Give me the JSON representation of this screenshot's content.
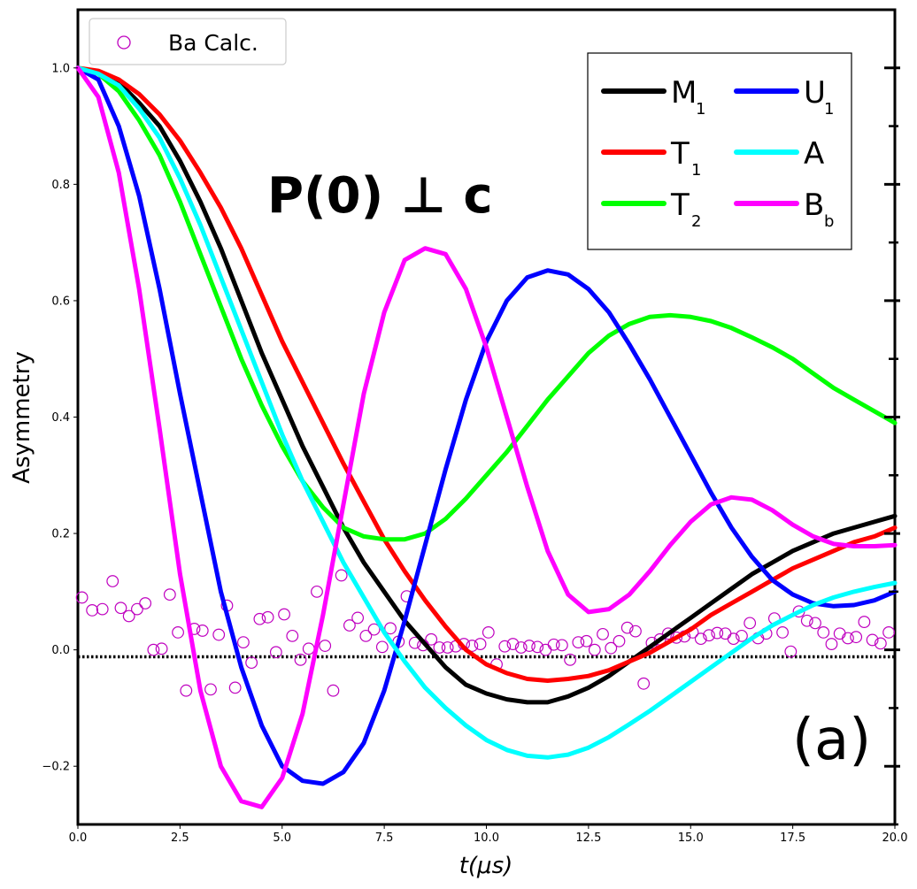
{
  "chart_data": {
    "type": "line",
    "xlabel": "t(μs)",
    "ylabel": "Asymmetry",
    "xlim": [
      0,
      20
    ],
    "ylim": [
      -0.3,
      1.1
    ],
    "xticks": [
      0.0,
      2.5,
      5.0,
      7.5,
      10.0,
      12.5,
      15.0,
      17.5,
      20.0
    ],
    "xtick_labels": [
      "0.0",
      "2.5",
      "5.0",
      "7.5",
      "10.0",
      "12.5",
      "15.0",
      "17.5",
      "20.0"
    ],
    "yticks": [
      -0.2,
      0.0,
      0.2,
      0.4,
      0.6,
      0.8,
      1.0
    ],
    "ytick_labels": [
      "−0.2",
      "0.0",
      "0.2",
      "0.4",
      "0.6",
      "0.8",
      "1.0"
    ],
    "grid": false,
    "annotations": {
      "polarization": "P(0) ⊥ c",
      "panel": "(a)"
    },
    "legend": {
      "placement": "top-left",
      "entry": "Ba Calc."
    },
    "inset_legend": {
      "placement": "top-right",
      "entries": [
        {
          "main": "M",
          "sub": "1",
          "color": "#000000"
        },
        {
          "main": "U",
          "sub": "1",
          "color": "#0000ff"
        },
        {
          "main": "T",
          "sub": "1",
          "color": "#ff0000"
        },
        {
          "main": "A",
          "sub": "",
          "color": "#00ffff"
        },
        {
          "main": "T",
          "sub": "2",
          "color": "#00ff00"
        },
        {
          "main": "B",
          "sub": "b",
          "color": "#ff00ff"
        }
      ]
    },
    "baseline": {
      "y": -0.012,
      "style": "dotted",
      "color": "#000000"
    },
    "series": [
      {
        "name": "M1",
        "color": "#000000",
        "x": [
          0,
          0.5,
          1,
          1.5,
          2,
          2.5,
          3,
          3.5,
          4,
          4.5,
          5,
          5.5,
          6,
          6.5,
          7,
          7.5,
          8,
          8.5,
          9,
          9.5,
          10,
          10.5,
          11,
          11.5,
          12,
          12.5,
          13,
          13.5,
          14,
          14.5,
          15,
          15.5,
          16,
          16.5,
          17,
          17.5,
          18,
          18.5,
          19,
          19.5,
          20
        ],
        "y": [
          1.0,
          0.99,
          0.975,
          0.94,
          0.9,
          0.84,
          0.77,
          0.69,
          0.6,
          0.51,
          0.43,
          0.35,
          0.28,
          0.21,
          0.15,
          0.1,
          0.05,
          0.01,
          -0.03,
          -0.06,
          -0.075,
          -0.085,
          -0.09,
          -0.09,
          -0.08,
          -0.065,
          -0.045,
          -0.02,
          0.005,
          0.03,
          0.055,
          0.08,
          0.105,
          0.13,
          0.15,
          0.17,
          0.185,
          0.2,
          0.21,
          0.22,
          0.23
        ]
      },
      {
        "name": "T1",
        "color": "#ff0000",
        "x": [
          0,
          0.5,
          1,
          1.5,
          2,
          2.5,
          3,
          3.5,
          4,
          4.5,
          5,
          5.5,
          6,
          6.5,
          7,
          7.5,
          8,
          8.5,
          9,
          9.5,
          10,
          10.5,
          11,
          11.5,
          12,
          12.5,
          13,
          13.5,
          14,
          14.5,
          15,
          15.5,
          16,
          16.5,
          17,
          17.5,
          18,
          18.5,
          19,
          19.5,
          20
        ],
        "y": [
          1.0,
          0.995,
          0.98,
          0.955,
          0.92,
          0.875,
          0.82,
          0.76,
          0.69,
          0.61,
          0.53,
          0.46,
          0.39,
          0.32,
          0.255,
          0.19,
          0.135,
          0.085,
          0.04,
          0.0,
          -0.025,
          -0.04,
          -0.05,
          -0.053,
          -0.05,
          -0.045,
          -0.035,
          -0.02,
          -0.005,
          0.015,
          0.035,
          0.06,
          0.08,
          0.1,
          0.12,
          0.14,
          0.155,
          0.17,
          0.185,
          0.195,
          0.21
        ]
      },
      {
        "name": "T2",
        "color": "#00ff00",
        "x": [
          0,
          0.5,
          1,
          1.5,
          2,
          2.5,
          3,
          3.5,
          4,
          4.5,
          5,
          5.5,
          6,
          6.5,
          7,
          7.5,
          8,
          8.5,
          9,
          9.5,
          10,
          10.5,
          11,
          11.5,
          12,
          12.5,
          13,
          13.5,
          14,
          14.5,
          15,
          15.5,
          16,
          16.5,
          17,
          17.5,
          18,
          18.5,
          19,
          19.5,
          20
        ],
        "y": [
          1.0,
          0.99,
          0.96,
          0.91,
          0.85,
          0.77,
          0.68,
          0.59,
          0.5,
          0.42,
          0.35,
          0.29,
          0.245,
          0.21,
          0.195,
          0.19,
          0.19,
          0.2,
          0.225,
          0.26,
          0.3,
          0.34,
          0.385,
          0.43,
          0.47,
          0.51,
          0.54,
          0.56,
          0.572,
          0.575,
          0.572,
          0.565,
          0.553,
          0.537,
          0.52,
          0.5,
          0.475,
          0.45,
          0.43,
          0.41,
          0.39
        ]
      },
      {
        "name": "U1",
        "color": "#0000ff",
        "x": [
          0,
          0.5,
          1,
          1.5,
          2,
          2.5,
          3,
          3.5,
          4,
          4.5,
          5,
          5.5,
          6,
          6.5,
          7,
          7.5,
          8,
          8.5,
          9,
          9.5,
          10,
          10.5,
          11,
          11.5,
          12,
          12.5,
          13,
          13.5,
          14,
          14.5,
          15,
          15.5,
          16,
          16.5,
          17,
          17.5,
          18,
          18.5,
          19,
          19.5,
          20
        ],
        "y": [
          1.0,
          0.98,
          0.9,
          0.78,
          0.62,
          0.44,
          0.27,
          0.1,
          -0.03,
          -0.13,
          -0.2,
          -0.225,
          -0.23,
          -0.21,
          -0.16,
          -0.07,
          0.05,
          0.18,
          0.31,
          0.43,
          0.53,
          0.6,
          0.64,
          0.652,
          0.645,
          0.62,
          0.58,
          0.525,
          0.465,
          0.4,
          0.335,
          0.27,
          0.21,
          0.16,
          0.12,
          0.095,
          0.08,
          0.075,
          0.077,
          0.085,
          0.1
        ]
      },
      {
        "name": "A",
        "color": "#00ffff",
        "x": [
          0,
          0.5,
          1,
          1.5,
          2,
          2.5,
          3,
          3.5,
          4,
          4.5,
          5,
          5.5,
          6,
          6.5,
          7,
          7.5,
          8,
          8.5,
          9,
          9.5,
          10,
          10.5,
          11,
          11.5,
          12,
          12.5,
          13,
          13.5,
          14,
          14.5,
          15,
          15.5,
          16,
          16.5,
          17,
          17.5,
          18,
          18.5,
          19,
          19.5,
          20
        ],
        "y": [
          1.0,
          0.99,
          0.97,
          0.93,
          0.88,
          0.81,
          0.73,
          0.64,
          0.55,
          0.46,
          0.37,
          0.29,
          0.22,
          0.15,
          0.09,
          0.03,
          -0.02,
          -0.065,
          -0.1,
          -0.13,
          -0.155,
          -0.172,
          -0.182,
          -0.185,
          -0.18,
          -0.168,
          -0.15,
          -0.128,
          -0.105,
          -0.08,
          -0.055,
          -0.03,
          -0.005,
          0.02,
          0.042,
          0.06,
          0.077,
          0.09,
          0.1,
          0.108,
          0.115
        ]
      },
      {
        "name": "Bb",
        "color": "#ff00ff",
        "x": [
          0,
          0.5,
          1,
          1.5,
          2,
          2.5,
          3,
          3.5,
          4,
          4.5,
          5,
          5.5,
          6,
          6.5,
          7,
          7.5,
          8,
          8.5,
          9,
          9.5,
          10,
          10.5,
          11,
          11.5,
          12,
          12.5,
          13,
          13.5,
          14,
          14.5,
          15,
          15.5,
          16,
          16.5,
          17,
          17.5,
          18,
          18.5,
          19,
          19.5,
          20
        ],
        "y": [
          1.0,
          0.95,
          0.82,
          0.62,
          0.38,
          0.13,
          -0.07,
          -0.2,
          -0.26,
          -0.27,
          -0.22,
          -0.11,
          0.06,
          0.25,
          0.44,
          0.58,
          0.67,
          0.69,
          0.68,
          0.62,
          0.52,
          0.4,
          0.28,
          0.17,
          0.095,
          0.065,
          0.07,
          0.095,
          0.135,
          0.18,
          0.22,
          0.25,
          0.262,
          0.258,
          0.24,
          0.215,
          0.195,
          0.182,
          0.178,
          0.178,
          0.18
        ]
      },
      {
        "name": "Ba Calc.",
        "color": "#bf00bf",
        "marker": "open-circle",
        "x": [
          0.1,
          0.35,
          0.6,
          0.85,
          1.05,
          1.25,
          1.45,
          1.65,
          1.85,
          2.05,
          2.25,
          2.45,
          2.65,
          2.85,
          3.05,
          3.25,
          3.45,
          3.65,
          3.85,
          4.05,
          4.25,
          4.45,
          4.65,
          4.85,
          5.05,
          5.25,
          5.45,
          5.65,
          5.85,
          6.05,
          6.25,
          6.45,
          6.65,
          6.85,
          7.05,
          7.25,
          7.45,
          7.65,
          7.85,
          8.05,
          8.25,
          8.45,
          8.65,
          8.85,
          9.05,
          9.25,
          9.45,
          9.65,
          9.85,
          10.05,
          10.25,
          10.45,
          10.65,
          10.85,
          11.05,
          11.25,
          11.45,
          11.65,
          11.85,
          12.05,
          12.25,
          12.45,
          12.65,
          12.85,
          13.05,
          13.25,
          13.45,
          13.65,
          13.85,
          14.05,
          14.25,
          14.45,
          14.65,
          14.85,
          15.05,
          15.25,
          15.45,
          15.65,
          15.85,
          16.05,
          16.25,
          16.45,
          16.65,
          16.85,
          17.05,
          17.25,
          17.45,
          17.65,
          17.85,
          18.05,
          18.25,
          18.45,
          18.65,
          18.85,
          19.05,
          19.25,
          19.45,
          19.65,
          19.85
        ],
        "y": [
          0.09,
          0.068,
          0.07,
          0.118,
          0.072,
          0.058,
          0.07,
          0.08,
          0.0,
          0.002,
          0.095,
          0.03,
          -0.07,
          0.036,
          0.033,
          -0.068,
          0.026,
          0.076,
          -0.065,
          0.013,
          -0.022,
          0.053,
          0.056,
          -0.004,
          0.061,
          0.024,
          -0.017,
          0.002,
          0.1,
          0.007,
          -0.07,
          0.128,
          0.042,
          0.055,
          0.024,
          0.035,
          0.005,
          0.037,
          0.014,
          0.092,
          0.012,
          0.008,
          0.018,
          0.004,
          0.004,
          0.006,
          0.01,
          0.007,
          0.01,
          0.03,
          -0.025,
          0.006,
          0.01,
          0.004,
          0.007,
          0.005,
          0.0,
          0.009,
          0.008,
          -0.017,
          0.013,
          0.015,
          0.0,
          0.027,
          0.003,
          0.015,
          0.038,
          0.032,
          -0.058,
          0.012,
          0.018,
          0.028,
          0.021,
          0.023,
          0.03,
          0.019,
          0.025,
          0.029,
          0.028,
          0.019,
          0.024,
          0.046,
          0.02,
          0.028,
          0.054,
          0.03,
          -0.003,
          0.066,
          0.05,
          0.046,
          0.03,
          0.01,
          0.028,
          0.02,
          0.022,
          0.048,
          0.017,
          0.011,
          0.03
        ]
      }
    ]
  }
}
